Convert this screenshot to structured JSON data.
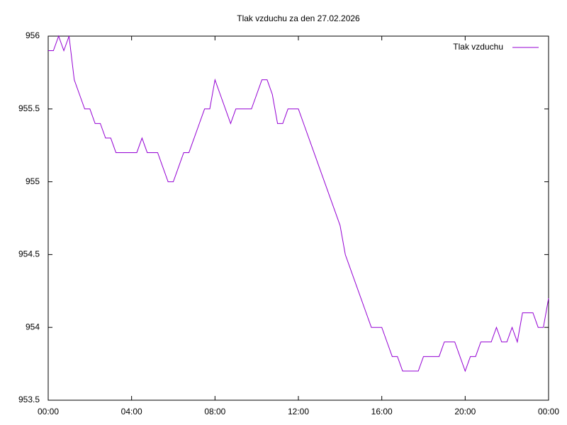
{
  "chart_data": {
    "type": "line",
    "title": "Tlak vzduchu za den 27.02.2026",
    "x": [
      0,
      0.25,
      0.5,
      0.75,
      1,
      1.25,
      1.5,
      1.75,
      2,
      2.25,
      2.5,
      2.75,
      3,
      3.25,
      3.5,
      3.75,
      4,
      4.25,
      4.5,
      4.75,
      5,
      5.25,
      5.5,
      5.75,
      6,
      6.25,
      6.5,
      6.75,
      7,
      7.25,
      7.5,
      7.75,
      8,
      8.25,
      8.5,
      8.75,
      9,
      9.25,
      9.5,
      9.75,
      10,
      10.25,
      10.5,
      10.75,
      11,
      11.25,
      11.5,
      11.75,
      12,
      12.25,
      12.5,
      12.75,
      13,
      13.25,
      13.5,
      13.75,
      14,
      14.25,
      14.5,
      14.75,
      15,
      15.25,
      15.5,
      15.75,
      16,
      16.25,
      16.5,
      16.75,
      17,
      17.25,
      17.5,
      17.75,
      18,
      18.25,
      18.5,
      18.75,
      19,
      19.25,
      19.5,
      19.75,
      20,
      20.25,
      20.5,
      20.75,
      21,
      21.25,
      21.5,
      21.75,
      22,
      22.25,
      22.5,
      22.75,
      23,
      23.25,
      23.5,
      23.75,
      24
    ],
    "series": [
      {
        "name": "Tlak vzduchu",
        "color": "#9400d3",
        "values": [
          955.9,
          955.9,
          956,
          955.9,
          956,
          955.7,
          955.6,
          955.5,
          955.5,
          955.4,
          955.4,
          955.3,
          955.3,
          955.2,
          955.2,
          955.2,
          955.2,
          955.2,
          955.3,
          955.2,
          955.2,
          955.2,
          955.1,
          955.0,
          955.0,
          955.1,
          955.2,
          955.2,
          955.3,
          955.4,
          955.5,
          955.5,
          955.7,
          955.6,
          955.5,
          955.4,
          955.5,
          955.5,
          955.5,
          955.5,
          955.6,
          955.7,
          955.7,
          955.6,
          955.4,
          955.4,
          955.5,
          955.5,
          955.5,
          955.4,
          955.3,
          955.2,
          955.1,
          955.0,
          954.9,
          954.8,
          954.7,
          954.5,
          954.4,
          954.3,
          954.2,
          954.1,
          954.0,
          954.0,
          954.0,
          953.9,
          953.8,
          953.8,
          953.7,
          953.7,
          953.7,
          953.7,
          953.8,
          953.8,
          953.8,
          953.8,
          953.9,
          953.9,
          953.9,
          953.8,
          953.7,
          953.8,
          953.8,
          953.9,
          953.9,
          953.9,
          954.0,
          953.9,
          953.9,
          954.0,
          953.9,
          954.1,
          954.1,
          954.1,
          954.0,
          954.0,
          954.2
        ]
      }
    ],
    "xlim": [
      0,
      24
    ],
    "xticks": [
      {
        "value": 0,
        "label": "00:00"
      },
      {
        "value": 4,
        "label": "04:00"
      },
      {
        "value": 8,
        "label": "08:00"
      },
      {
        "value": 12,
        "label": "12:00"
      },
      {
        "value": 16,
        "label": "16:00"
      },
      {
        "value": 20,
        "label": "20:00"
      },
      {
        "value": 24,
        "label": "00:00"
      }
    ],
    "ylim": [
      953.5,
      956
    ],
    "yticks": [
      953.5,
      954,
      954.5,
      955,
      955.5,
      956
    ],
    "legend": "top-right",
    "grid": false
  }
}
